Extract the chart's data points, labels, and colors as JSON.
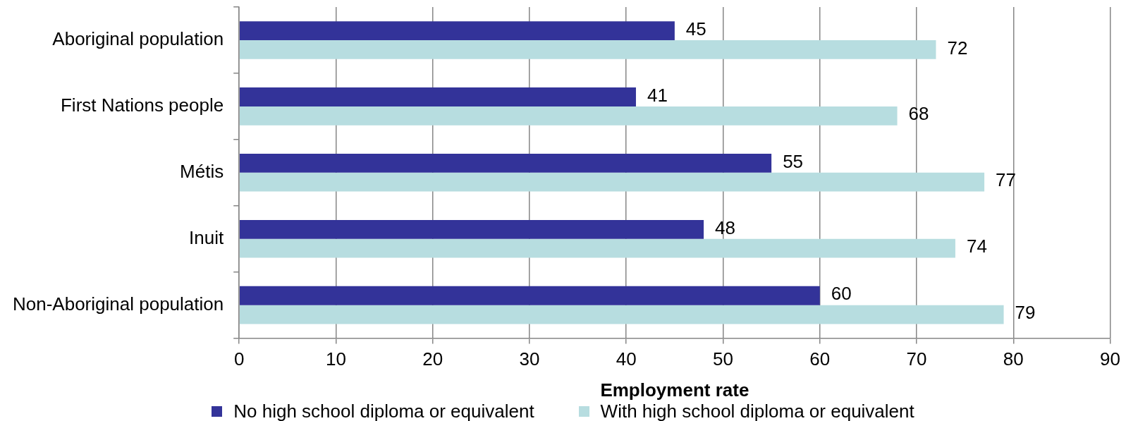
{
  "chart_data": {
    "type": "bar",
    "orientation": "horizontal",
    "categories": [
      "Aboriginal population",
      "First Nations people",
      "Métis",
      "Inuit",
      "Non-Aboriginal population"
    ],
    "series": [
      {
        "name": "No high school diploma or equivalent",
        "color": "#333399",
        "values": [
          45,
          41,
          55,
          48,
          60
        ]
      },
      {
        "name": "With high school diploma or equivalent",
        "color": "#b7dde0",
        "values": [
          72,
          68,
          77,
          74,
          79
        ]
      }
    ],
    "xlabel": "Employment rate",
    "xlim": [
      0,
      90
    ],
    "xticks": [
      0,
      10,
      20,
      30,
      40,
      50,
      60,
      70,
      80,
      90
    ],
    "grid": "x",
    "legend": "bottom",
    "data_labels": true
  }
}
